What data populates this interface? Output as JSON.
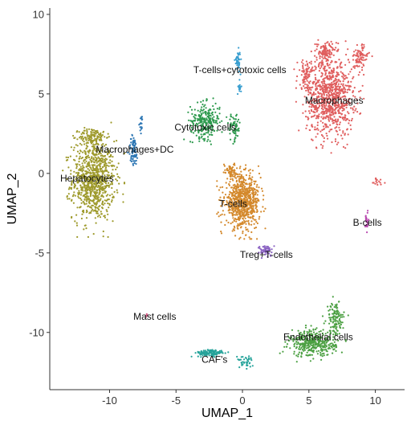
{
  "chart_data": {
    "type": "scatter",
    "xlabel": "UMAP_1",
    "ylabel": "UMAP_2",
    "xlim": [
      -14.5,
      12.2
    ],
    "ylim": [
      -13.6,
      10.4
    ],
    "x_ticks": [
      -10,
      -5,
      0,
      5,
      10
    ],
    "y_ticks": [
      -10,
      -5,
      0,
      5,
      10
    ],
    "x_tick_labels": [
      "-10",
      "-5",
      "0",
      "5",
      "10"
    ],
    "y_tick_labels": [
      "-10",
      "-5",
      "0",
      "5",
      "10"
    ],
    "grid": false,
    "legend": "none",
    "clusters": [
      {
        "label": "Hepatocytes",
        "color": "#9e9a2c",
        "label_at": [
          -11.7,
          -0.3
        ],
        "blobs": [
          {
            "center": [
              -11.2,
              -0.4
            ],
            "spread": [
              1.45,
              2.25
            ],
            "n": 900
          },
          {
            "center": [
              -11.3,
              2.3
            ],
            "spread": [
              0.9,
              0.5
            ],
            "n": 120
          }
        ]
      },
      {
        "label": "Macrophages+DC",
        "color": "#2f78b5",
        "label_at": [
          -8.1,
          1.5
        ],
        "blobs": [
          {
            "center": [
              -8.2,
              1.4
            ],
            "spread": [
              0.32,
              0.9
            ],
            "n": 80
          },
          {
            "center": [
              -7.6,
              3.1
            ],
            "spread": [
              0.12,
              0.5
            ],
            "n": 20
          }
        ]
      },
      {
        "label": "Cytotoxic cells",
        "color": "#2e9a4e",
        "label_at": [
          -2.8,
          2.9
        ],
        "blobs": [
          {
            "center": [
              -2.8,
              3.3
            ],
            "spread": [
              1.0,
              1.0
            ],
            "n": 260
          },
          {
            "center": [
              -0.6,
              2.9
            ],
            "spread": [
              0.4,
              0.8
            ],
            "n": 70
          }
        ]
      },
      {
        "label": "T-cells+cytotoxic cells",
        "color": "#3a9fd0",
        "label_at": [
          -0.2,
          6.5
        ],
        "blobs": [
          {
            "center": [
              -0.35,
              7.1
            ],
            "spread": [
              0.18,
              0.55
            ],
            "n": 45
          },
          {
            "center": [
              -0.2,
              5.4
            ],
            "spread": [
              0.1,
              0.4
            ],
            "n": 15
          }
        ]
      },
      {
        "label": "Macrophages",
        "color": "#e05e5e",
        "label_at": [
          6.9,
          4.6
        ],
        "blobs": [
          {
            "center": [
              6.6,
              4.8
            ],
            "spread": [
              1.6,
              2.2
            ],
            "n": 850
          },
          {
            "center": [
              6.3,
              7.6
            ],
            "spread": [
              0.7,
              0.6
            ],
            "n": 120
          },
          {
            "center": [
              8.8,
              7.3
            ],
            "spread": [
              0.6,
              0.7
            ],
            "n": 90
          },
          {
            "center": [
              4.8,
              6.2
            ],
            "spread": [
              0.6,
              0.8
            ],
            "n": 80
          },
          {
            "center": [
              10.1,
              -0.5
            ],
            "spread": [
              0.5,
              0.3
            ],
            "n": 15
          }
        ]
      },
      {
        "label": "T-cells",
        "color": "#d4892c",
        "label_at": [
          -0.7,
          -1.9
        ],
        "blobs": [
          {
            "center": [
              0.0,
              -1.8
            ],
            "spread": [
              1.2,
              1.45
            ],
            "n": 750
          },
          {
            "center": [
              -0.9,
              0.2
            ],
            "spread": [
              0.5,
              0.4
            ],
            "n": 60
          }
        ]
      },
      {
        "label": "B-cells",
        "color": "#b94bb0",
        "label_at": [
          9.4,
          -3.1
        ],
        "blobs": [
          {
            "center": [
              9.35,
              -3.0
            ],
            "spread": [
              0.1,
              0.7
            ],
            "n": 25
          }
        ]
      },
      {
        "label": "Treg+T-cells",
        "color": "#8a62c2",
        "label_at": [
          1.8,
          -5.1
        ],
        "blobs": [
          {
            "center": [
              1.8,
              -4.85
            ],
            "spread": [
              0.5,
              0.32
            ],
            "n": 55
          }
        ]
      },
      {
        "label": "Mast cells",
        "color": "#d6608a",
        "label_at": [
          -6.6,
          -9.0
        ],
        "blobs": [
          {
            "center": [
              -7.2,
              -8.95
            ],
            "spread": [
              0.08,
              0.08
            ],
            "n": 6
          }
        ]
      },
      {
        "label": "Endothelial cells",
        "color": "#4ca043",
        "label_at": [
          5.7,
          -10.3
        ],
        "blobs": [
          {
            "center": [
              5.3,
              -10.7
            ],
            "spread": [
              1.55,
              0.75
            ],
            "n": 380
          },
          {
            "center": [
              7.0,
              -9.1
            ],
            "spread": [
              0.6,
              0.9
            ],
            "n": 120
          }
        ]
      },
      {
        "label": "CAF's",
        "color": "#25a39a",
        "label_at": [
          -2.1,
          -11.7
        ],
        "blobs": [
          {
            "center": [
              -2.4,
              -11.3
            ],
            "spread": [
              1.0,
              0.2
            ],
            "n": 120
          },
          {
            "center": [
              0.2,
              -11.8
            ],
            "spread": [
              0.55,
              0.35
            ],
            "n": 40
          }
        ]
      }
    ]
  }
}
